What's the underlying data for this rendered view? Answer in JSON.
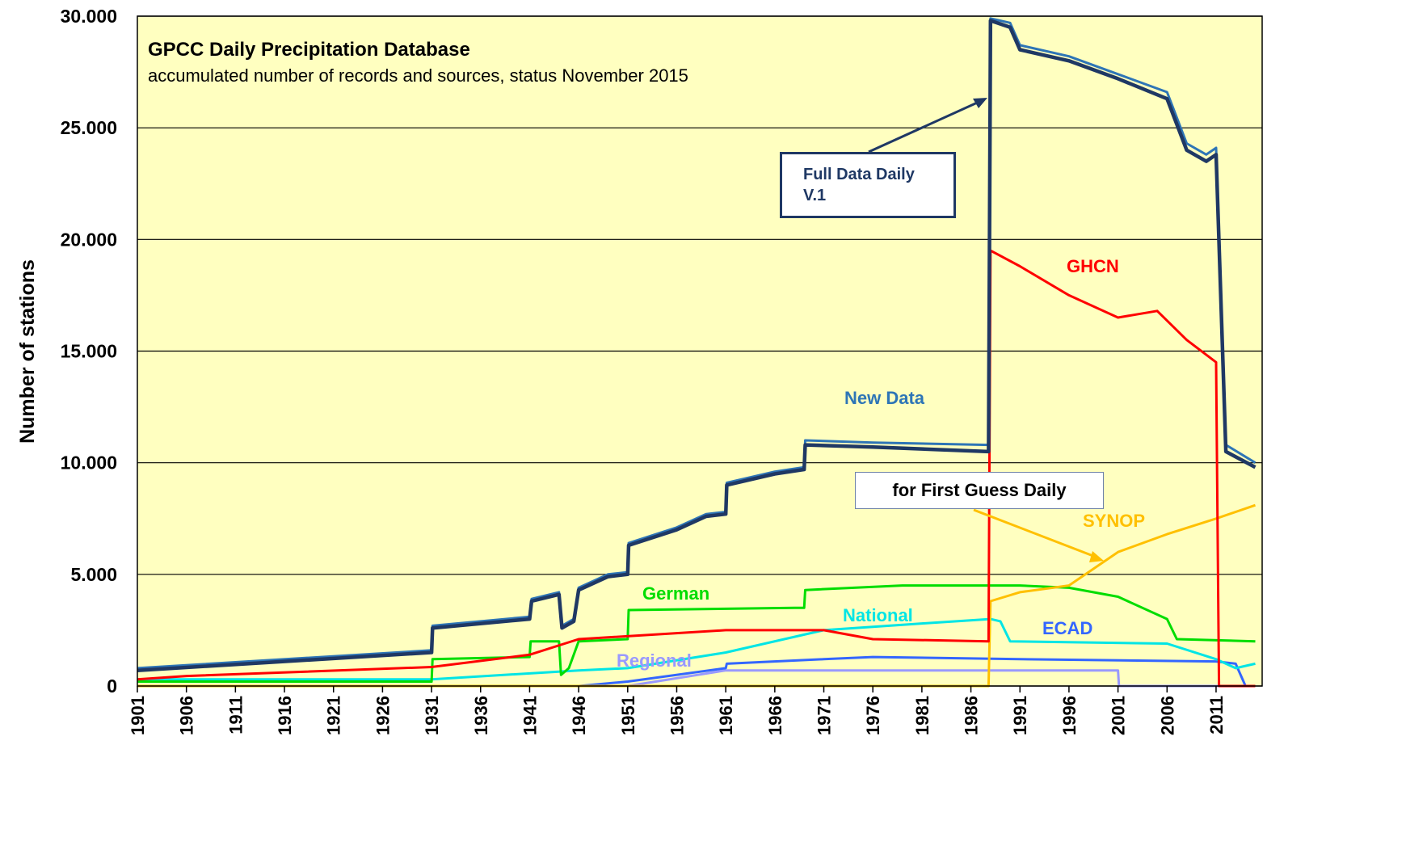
{
  "chart_data": {
    "type": "line",
    "title": "GPCC Daily Precipitation Database",
    "subtitle": "accumulated number of records and sources, status November 2015",
    "ylabel": "Number of stations",
    "annotations": [
      "for First Guess Daily"
    ],
    "xlim": [
      1901,
      2015.7
    ],
    "xticks": [
      1901,
      1906,
      1911,
      1916,
      1921,
      1926,
      1931,
      1936,
      1941,
      1946,
      1951,
      1956,
      1961,
      1966,
      1971,
      1976,
      1981,
      1986,
      1991,
      1996,
      2001,
      2006,
      2011
    ],
    "ylim": [
      0,
      30000
    ],
    "yticks": [
      {
        "value": 0,
        "label": "0"
      },
      {
        "value": 5000,
        "label": "5.000"
      },
      {
        "value": 10000,
        "label": "10.000"
      },
      {
        "value": 15000,
        "label": "15.000"
      },
      {
        "value": 20000,
        "label": "20.000"
      },
      {
        "value": 25000,
        "label": "25.000"
      },
      {
        "value": 30000,
        "label": "30.000"
      }
    ],
    "grid": true,
    "series": [
      {
        "name": "Full Data Daily V.1",
        "color": "#1f3864",
        "x": [
          1901,
          1931,
          1931.1,
          1941,
          1941.2,
          1944,
          1944.3,
          1945.5,
          1946,
          1949,
          1951,
          1951.1,
          1956,
          1959,
          1961,
          1961.1,
          1966,
          1969,
          1969.1,
          1976,
          1987.8,
          1988,
          1990,
          1991,
          1996,
          2001,
          2006,
          2008,
          2010,
          2011,
          2012,
          2015
        ],
        "values": [
          700,
          1500,
          2600,
          3000,
          3800,
          4100,
          2600,
          2900,
          4300,
          4900,
          5000,
          6300,
          7000,
          7600,
          7700,
          9000,
          9500,
          9700,
          10800,
          10700,
          10500,
          29800,
          29500,
          28500,
          28000,
          27200,
          26300,
          24000,
          23500,
          23800,
          10500,
          9800
        ]
      },
      {
        "name": "New Data",
        "color": "#2e75b6",
        "x": [
          1901,
          1931,
          1931.1,
          1941,
          1941.2,
          1944,
          1944.3,
          1945.5,
          1946,
          1949,
          1951,
          1951.1,
          1956,
          1959,
          1961,
          1961.1,
          1966,
          1969,
          1969.1,
          1976,
          1987.8,
          1988,
          1990,
          1991,
          1996,
          2001,
          2006,
          2008,
          2010,
          2011,
          2012,
          2015
        ],
        "values": [
          800,
          1600,
          2700,
          3100,
          3900,
          4200,
          2700,
          3000,
          4400,
          5000,
          5100,
          6400,
          7100,
          7700,
          7800,
          9100,
          9600,
          9800,
          11000,
          10900,
          10800,
          29900,
          29700,
          28700,
          28200,
          27400,
          26600,
          24300,
          23800,
          24100,
          10800,
          10000
        ]
      },
      {
        "name": "GHCN",
        "color": "#ff0000",
        "x": [
          1901,
          1906,
          1931,
          1941,
          1946,
          1961,
          1971,
          1976,
          1987.8,
          1988,
          1991,
          1996,
          2001,
          2005,
          2008,
          2011,
          2011.3,
          2015
        ],
        "values": [
          300,
          450,
          850,
          1400,
          2100,
          2500,
          2500,
          2100,
          2000,
          19500,
          18800,
          17500,
          16500,
          16800,
          15500,
          14500,
          0,
          0
        ]
      },
      {
        "name": "SYNOP",
        "color": "#ffc000",
        "x": [
          1901,
          1987.8,
          1988,
          1991,
          1996,
          2001,
          2006,
          2011,
          2015
        ],
        "values": [
          0,
          0,
          3800,
          4200,
          4500,
          6000,
          6800,
          7500,
          8100
        ]
      },
      {
        "name": "German",
        "color": "#00dd00",
        "x": [
          1901,
          1931,
          1931.1,
          1941,
          1941.1,
          1944,
          1944.2,
          1945,
          1946,
          1951,
          1951.1,
          1968,
          1969,
          1969.1,
          1979,
          1991,
          1996,
          2001,
          2006,
          2007,
          2015
        ],
        "values": [
          200,
          200,
          1200,
          1300,
          2000,
          2000,
          500,
          800,
          2000,
          2100,
          3400,
          3500,
          3500,
          4300,
          4500,
          4500,
          4400,
          4000,
          3000,
          2100,
          2000
        ]
      },
      {
        "name": "National",
        "color": "#00e5e5",
        "x": [
          1901,
          1931,
          1946,
          1951,
          1961,
          1971,
          1981,
          1988,
          1989,
          1990,
          2006,
          2011,
          2013,
          2015
        ],
        "values": [
          300,
          300,
          700,
          800,
          1500,
          2500,
          2800,
          3000,
          2900,
          2000,
          1900,
          1200,
          800,
          1000
        ]
      },
      {
        "name": "ECAD",
        "color": "#3366ff",
        "x": [
          1901,
          1946,
          1951,
          1961,
          1961.1,
          1971,
          1976,
          1991,
          2011,
          2013,
          2014,
          2015
        ],
        "values": [
          0,
          0,
          200,
          800,
          1000,
          1200,
          1300,
          1200,
          1100,
          1000,
          0,
          0
        ]
      },
      {
        "name": "Regional",
        "color": "#9999ff",
        "x": [
          1901,
          1951,
          1961,
          1971,
          2001,
          2001.1,
          2015
        ],
        "values": [
          0,
          0,
          700,
          700,
          700,
          0,
          0
        ]
      }
    ]
  }
}
